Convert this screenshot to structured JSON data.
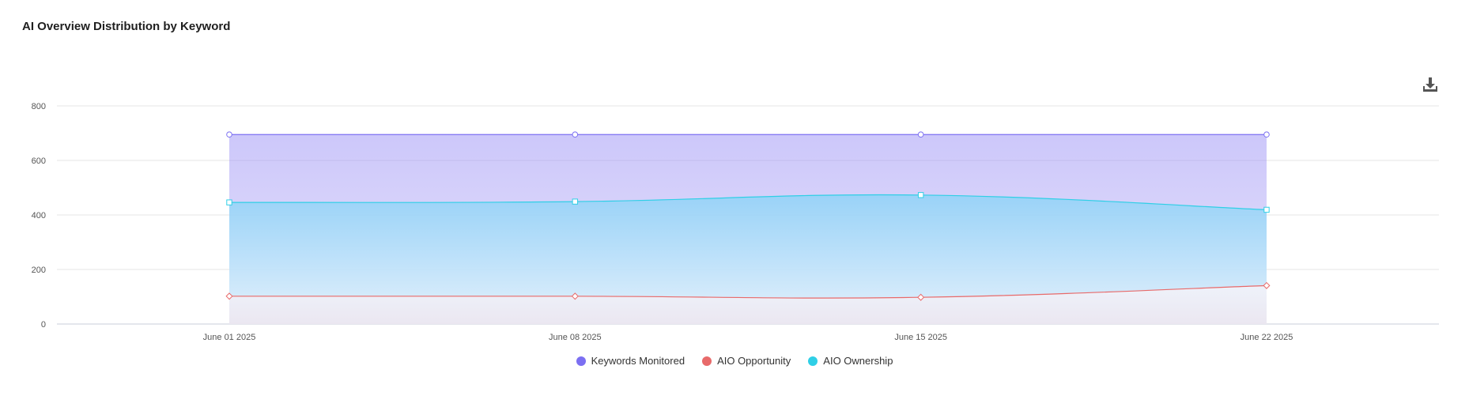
{
  "title": "AI Overview Distribution by Keyword",
  "download_icon": "download-icon",
  "chart_data": {
    "type": "area",
    "x": [
      "June 01 2025",
      "June 08 2025",
      "June 15 2025",
      "June 22 2025"
    ],
    "ylim": [
      0,
      800
    ],
    "yticks": [
      0,
      200,
      400,
      600,
      800
    ],
    "grid": true,
    "legend_position": "bottom",
    "series": [
      {
        "name": "Keywords Monitored",
        "values": [
          695,
          695,
          695,
          695
        ],
        "color": "#7b6ff2",
        "marker": "circle"
      },
      {
        "name": "AIO Opportunity",
        "values": [
          102,
          102,
          98,
          141
        ],
        "color": "#e86a6a",
        "marker": "diamond"
      },
      {
        "name": "AIO Ownership",
        "values": [
          446,
          449,
          473,
          419
        ],
        "color": "#2fcfe6",
        "marker": "square"
      }
    ]
  }
}
